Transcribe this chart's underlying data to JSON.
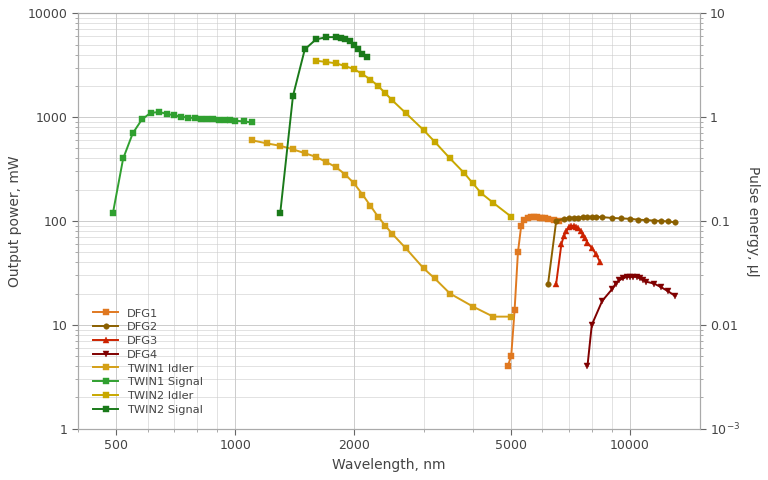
{
  "title": "",
  "xlabel": "Wavelength, nm",
  "ylabel_left": "Output power, mW",
  "ylabel_right": "Pulse energy, μJ",
  "background_color": "#ffffff",
  "grid_color": "#cccccc",
  "series": {
    "DFG1": {
      "color": "#E07820",
      "marker": "s",
      "markersize": 4,
      "x": [
        4900,
        5000,
        5100,
        5200,
        5300,
        5400,
        5500,
        5600,
        5700,
        5800,
        5900,
        6000,
        6100,
        6200,
        6400,
        6600
      ],
      "y": [
        4,
        5,
        14,
        50,
        90,
        103,
        108,
        110,
        110,
        109,
        108,
        107,
        106,
        105,
        103,
        100
      ]
    },
    "DFG2": {
      "color": "#8B6000",
      "marker": "o",
      "markersize": 4,
      "x": [
        6200,
        6500,
        6800,
        7000,
        7200,
        7400,
        7600,
        7800,
        8000,
        8200,
        8500,
        9000,
        9500,
        10000,
        10500,
        11000,
        11500,
        12000,
        12500,
        13000
      ],
      "y": [
        25,
        100,
        105,
        107,
        108,
        108,
        109,
        109,
        110,
        110,
        109,
        107,
        106,
        105,
        103,
        102,
        101,
        100,
        99,
        97
      ]
    },
    "DFG3": {
      "color": "#CC2200",
      "marker": "^",
      "markersize": 4,
      "x": [
        6500,
        6700,
        6800,
        6900,
        7000,
        7100,
        7200,
        7300,
        7400,
        7500,
        7600,
        7700,
        7800,
        8000,
        8200,
        8400
      ],
      "y": [
        25,
        60,
        72,
        80,
        87,
        90,
        90,
        88,
        85,
        80,
        74,
        68,
        62,
        55,
        48,
        40
      ]
    },
    "DFG4": {
      "color": "#800000",
      "marker": "v",
      "markersize": 4,
      "x": [
        7800,
        8000,
        8500,
        9000,
        9200,
        9400,
        9600,
        9800,
        10000,
        10200,
        10400,
        10600,
        10800,
        11000,
        11500,
        12000,
        12500,
        13000
      ],
      "y": [
        4,
        10,
        17,
        22,
        25,
        27,
        28,
        29,
        29,
        29,
        29,
        28,
        27,
        26,
        25,
        23,
        21,
        19
      ]
    },
    "TWIN1 Idler": {
      "color": "#D4A017",
      "marker": "s",
      "markersize": 4,
      "x": [
        1100,
        1200,
        1300,
        1400,
        1500,
        1600,
        1700,
        1800,
        1900,
        2000,
        2100,
        2200,
        2300,
        2400,
        2500,
        2700,
        3000,
        3200,
        3500,
        4000,
        4500,
        5000
      ],
      "y": [
        600,
        560,
        530,
        490,
        450,
        415,
        370,
        330,
        280,
        230,
        180,
        140,
        110,
        90,
        75,
        55,
        35,
        28,
        20,
        15,
        12,
        12
      ]
    },
    "TWIN1 Signal": {
      "color": "#30A030",
      "marker": "s",
      "markersize": 4,
      "x": [
        490,
        520,
        550,
        580,
        610,
        640,
        670,
        700,
        730,
        760,
        790,
        820,
        850,
        880,
        910,
        940,
        970,
        1000,
        1050,
        1100
      ],
      "y": [
        120,
        400,
        700,
        950,
        1100,
        1120,
        1080,
        1040,
        1010,
        990,
        980,
        970,
        960,
        950,
        940,
        935,
        930,
        925,
        910,
        890
      ]
    },
    "TWIN2 Idler": {
      "color": "#C8A800",
      "marker": "s",
      "markersize": 4,
      "x": [
        1600,
        1700,
        1800,
        1900,
        2000,
        2100,
        2200,
        2300,
        2400,
        2500,
        2700,
        3000,
        3200,
        3500,
        3800,
        4000,
        4200,
        4500,
        5000
      ],
      "y": [
        3500,
        3400,
        3300,
        3100,
        2900,
        2600,
        2300,
        2000,
        1700,
        1450,
        1100,
        750,
        580,
        400,
        290,
        230,
        185,
        150,
        110
      ]
    },
    "TWIN2 Signal": {
      "color": "#1A7A1A",
      "marker": "s",
      "markersize": 5,
      "x": [
        1300,
        1400,
        1500,
        1600,
        1700,
        1800,
        1850,
        1900,
        1950,
        2000,
        2050,
        2100,
        2150
      ],
      "y": [
        120,
        1600,
        4500,
        5600,
        5900,
        5900,
        5850,
        5700,
        5400,
        5000,
        4500,
        4100,
        3800
      ]
    }
  },
  "xticks": [
    500,
    1000,
    2000,
    5000,
    10000
  ],
  "yticks_left": [
    1,
    10,
    100,
    1000,
    10000
  ],
  "yticks_right_vals": [
    0.001,
    0.01,
    0.1,
    1,
    10
  ],
  "yticks_right_labels": [
    "10$^{-3}$",
    "0.01",
    "0.1",
    "1",
    "10"
  ],
  "legend_order": [
    "DFG1",
    "DFG2",
    "DFG3",
    "DFG4",
    "TWIN1 Idler",
    "TWIN1 Signal",
    "TWIN2 Idler",
    "TWIN2 Signal"
  ]
}
